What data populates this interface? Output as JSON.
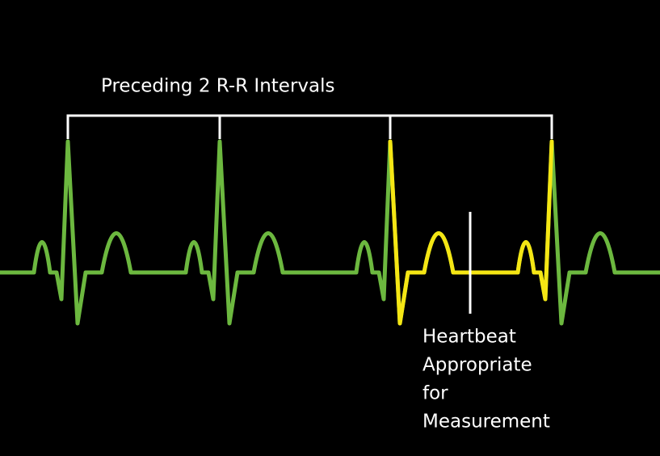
{
  "header": {
    "title": "Preceding 2 R-R Intervals"
  },
  "annotation": {
    "lines": [
      "Heartbeat",
      "Appropriate",
      "for",
      "Measurement"
    ]
  }
}
